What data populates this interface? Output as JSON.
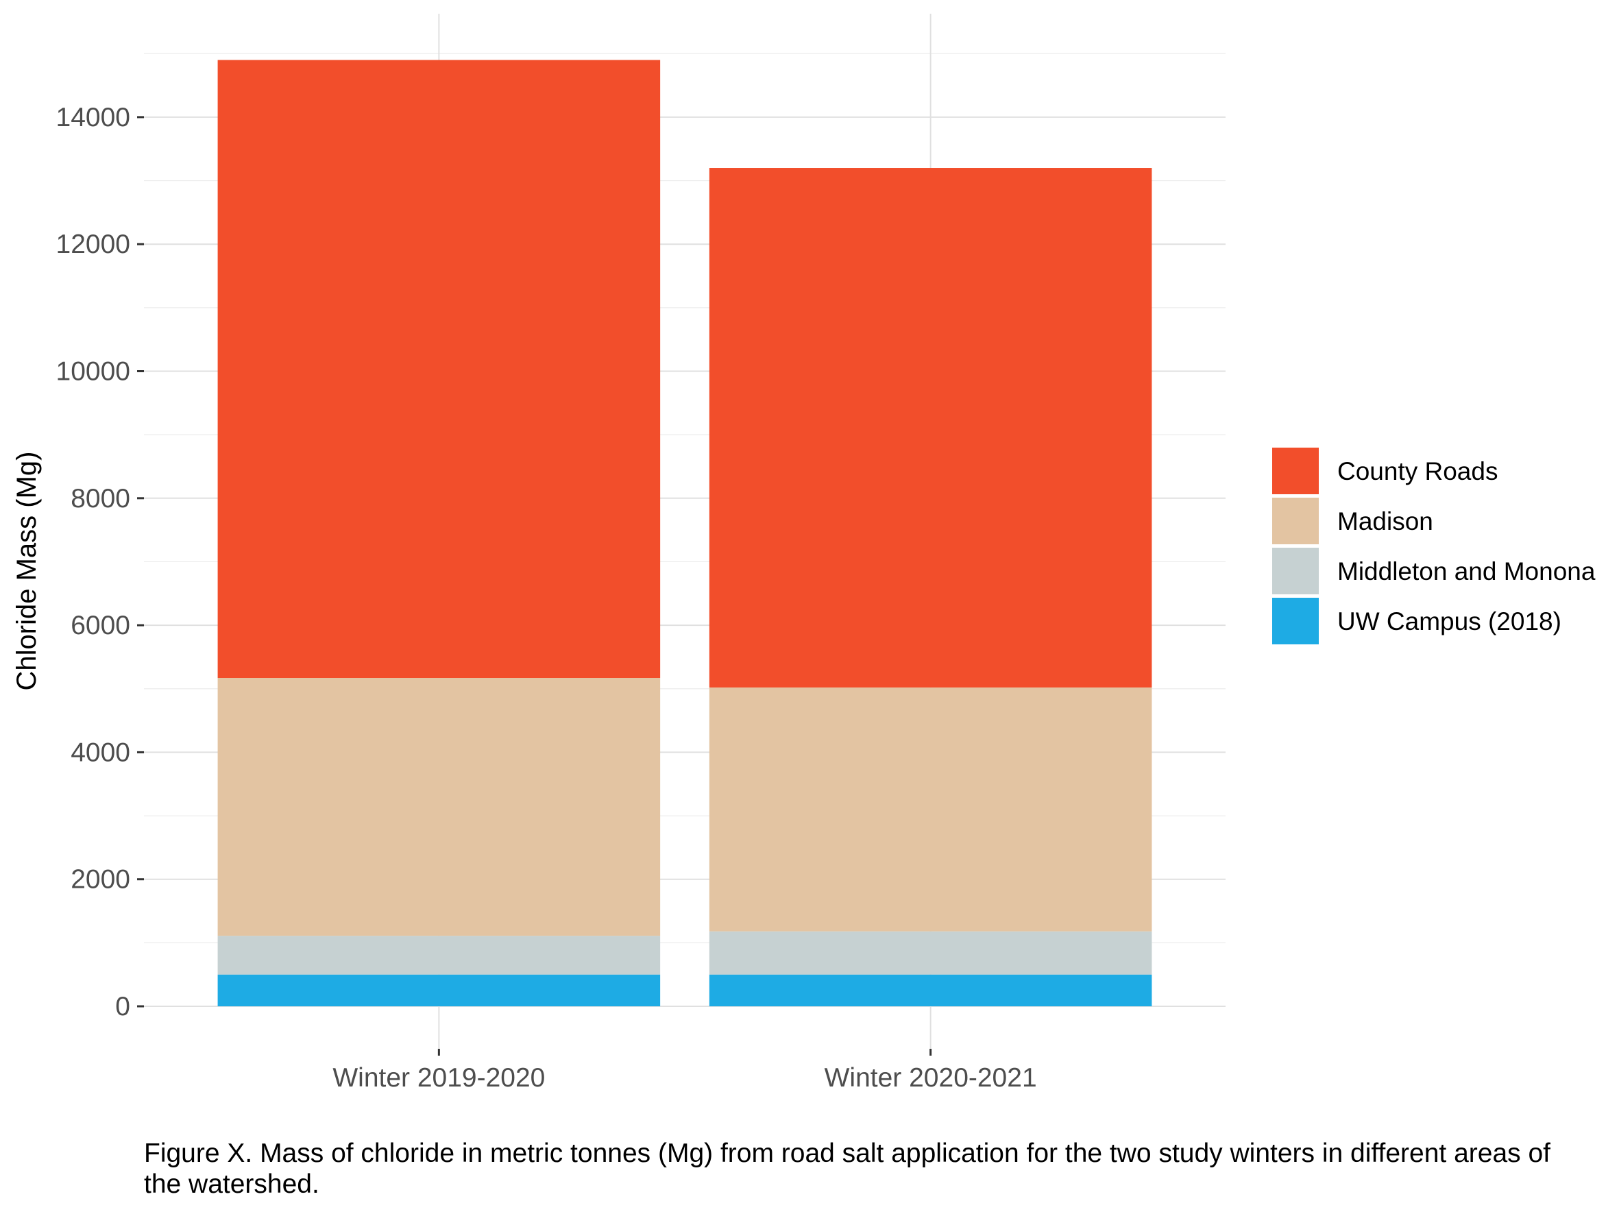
{
  "chart_data": {
    "type": "bar",
    "stacked": true,
    "categories": [
      "Winter 2019-2020",
      "Winter 2020-2021"
    ],
    "series": [
      {
        "name": "UW Campus (2018)",
        "color": "#1EABE4",
        "values": [
          500,
          500
        ]
      },
      {
        "name": "Middleton and Monona",
        "color": "#C6D1D2",
        "values": [
          610,
          680
        ]
      },
      {
        "name": "Madison",
        "color": "#E3C4A2",
        "values": [
          4060,
          3840
        ]
      },
      {
        "name": "County Roads",
        "color": "#F24E2B",
        "values": [
          9730,
          8180
        ]
      }
    ],
    "title": "",
    "xlabel": "",
    "ylabel": "Chloride Mass (Mg)",
    "ylim": [
      0,
      15000
    ],
    "yticks": [
      0,
      2000,
      4000,
      6000,
      8000,
      10000,
      12000,
      14000
    ],
    "ytick_labels": [
      "0",
      "2000",
      "4000",
      "6000",
      "8000",
      "10000",
      "12000",
      "14000"
    ],
    "grid": true,
    "legend_position": "right",
    "legend_order": [
      "County Roads",
      "Madison",
      "Middleton and Monona",
      "UW Campus (2018)"
    ]
  },
  "caption": "Figure X. Mass of chloride in metric tonnes (Mg) from road salt application for the two study winters in different areas of the watershed."
}
